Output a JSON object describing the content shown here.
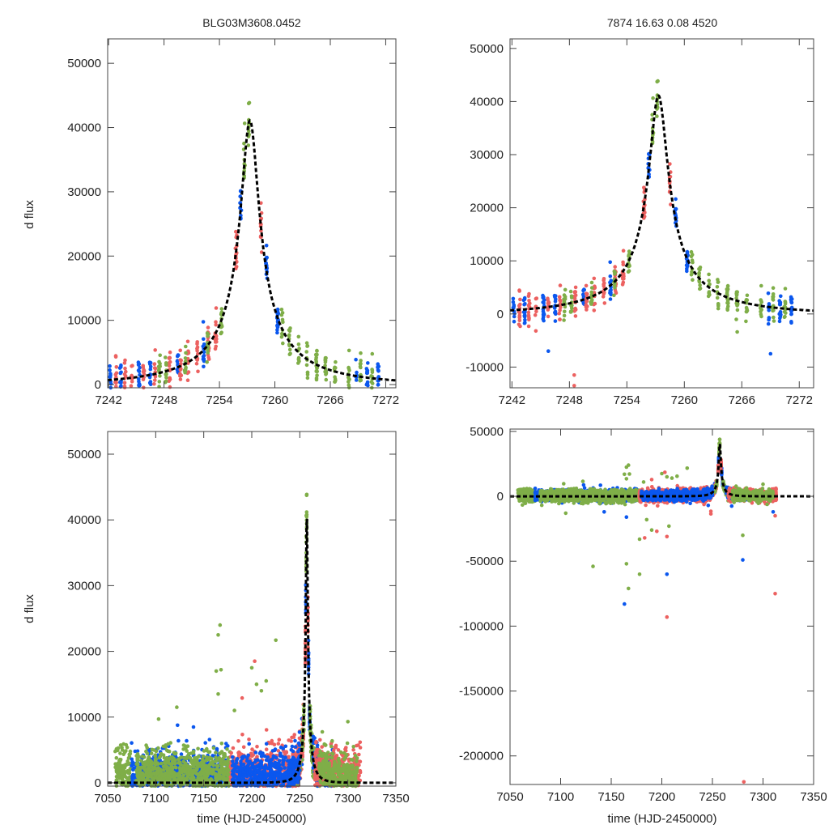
{
  "chart_data": {
    "type": "scatter",
    "colors": {
      "blue": "#0b57ee",
      "red": "#ec6160",
      "green": "#7fae48",
      "model": "#000000"
    },
    "titles": {
      "left": "BLG03M3608.0452",
      "right": "7874  16.63  0.08  4520"
    },
    "ylabel": "d flux",
    "xlabel": "time (HJD-2450000)",
    "model": {
      "type": "paczynski-dashed",
      "t0": 7257.3,
      "u0": 0.08,
      "tE": 12.0,
      "fs": 3565
    },
    "panels": [
      {
        "id": "zoom-left",
        "xlim": [
          7241.9,
          7273.1
        ],
        "ylim": [
          -500,
          53800
        ],
        "xticks": [
          7242,
          7248,
          7254,
          7260,
          7266,
          7272
        ],
        "yticks": [
          0,
          10000,
          20000,
          30000,
          40000,
          50000
        ],
        "title": "left",
        "show_ylabel": true,
        "show_xlabel": false,
        "dataset": "zoom"
      },
      {
        "id": "zoom-right",
        "xlim": [
          7241.8,
          7273.5
        ],
        "ylim": [
          -13900,
          51800
        ],
        "xticks": [
          7242,
          7248,
          7254,
          7260,
          7266,
          7272
        ],
        "yticks": [
          -10000,
          0,
          10000,
          20000,
          30000,
          40000,
          50000
        ],
        "title": "right",
        "show_ylabel": false,
        "show_xlabel": false,
        "dataset": "zoom"
      },
      {
        "id": "full-left",
        "xlim": [
          7050,
          7350
        ],
        "ylim": [
          -500,
          53450
        ],
        "xticks": [
          7050,
          7100,
          7150,
          7200,
          7250,
          7300,
          7350
        ],
        "yticks": [
          0,
          10000,
          20000,
          30000,
          40000,
          50000
        ],
        "show_ylabel": true,
        "show_xlabel": true,
        "dataset": "full"
      },
      {
        "id": "full-right",
        "xlim": [
          7050,
          7350
        ],
        "ylim": [
          -222000,
          51800
        ],
        "xticks": [
          7050,
          7100,
          7150,
          7200,
          7250,
          7300,
          7350
        ],
        "yticks": [
          -200000,
          -150000,
          -100000,
          -50000,
          0,
          50000
        ],
        "show_ylabel": false,
        "show_xlabel": true,
        "dataset": "full"
      }
    ],
    "series": [
      {
        "name": "blue",
        "event_nights": [
          7242.2,
          7243.3,
          7245.3,
          7246.5,
          7249.5,
          7252.3,
          7256.3,
          7259.1,
          7260.3,
          7268.8,
          7270.0,
          7271.2
        ]
      },
      {
        "name": "red",
        "event_nights": [
          7242.8,
          7243.8,
          7244.5,
          7245.8,
          7247.0,
          7248.6,
          7249.8,
          7250.6,
          7251.6,
          7252.8,
          7253.6,
          7255.8,
          7258.5
        ]
      },
      {
        "name": "green",
        "event_nights": [
          7247.5,
          7248.2,
          7250.3,
          7252.7,
          7254.2,
          7256.7,
          7257.2,
          7260.8,
          7261.6,
          7262.6,
          7263.5,
          7264.5,
          7265.5,
          7266.5,
          7268.0,
          7269.3,
          7270.5
        ]
      }
    ],
    "baseline_seasons": [
      {
        "color": "green",
        "range": [
          7058,
          7075
        ],
        "noise": 3000
      },
      {
        "color": "blue",
        "range": [
          7075,
          7175
        ],
        "noise": 2500
      },
      {
        "color": "green",
        "range": [
          7080,
          7178
        ],
        "noise": 2800
      },
      {
        "color": "red",
        "range": [
          7178,
          7250
        ],
        "noise": 2800
      },
      {
        "color": "blue",
        "range": [
          7180,
          7250
        ],
        "noise": 2200
      },
      {
        "color": "blue",
        "range": [
          7264,
          7285
        ],
        "noise": 2200
      },
      {
        "color": "red",
        "range": [
          7266,
          7313
        ],
        "noise": 2600
      },
      {
        "color": "green",
        "range": [
          7270,
          7310
        ],
        "noise": 2500
      }
    ],
    "outliers": [
      [
        "green",
        7132,
        -54000
      ],
      [
        "green",
        7165,
        -52000
      ],
      [
        "green",
        7178,
        -60000
      ],
      [
        "green",
        7167,
        -71000
      ],
      [
        "green",
        7178,
        -33000
      ],
      [
        "green",
        7190,
        -26000
      ],
      [
        "green",
        7207,
        -23000
      ],
      [
        "green",
        7105,
        -13000
      ],
      [
        "green",
        7280,
        -30000
      ],
      [
        "green",
        7185,
        -18000
      ],
      [
        "green",
        7167,
        24000
      ],
      [
        "green",
        7165,
        22500
      ],
      [
        "green",
        7225,
        21700
      ],
      [
        "green",
        7163,
        17000
      ],
      [
        "green",
        7168,
        17200
      ],
      [
        "green",
        7200,
        17500
      ],
      [
        "green",
        7205,
        15000
      ],
      [
        "green",
        7215,
        15500
      ],
      [
        "green",
        7103,
        9700
      ],
      [
        "green",
        7122,
        11500
      ],
      [
        "green",
        7165,
        13500
      ],
      [
        "green",
        7182,
        11000
      ],
      [
        "green",
        7300,
        9300
      ],
      [
        "green",
        7210,
        14000
      ],
      [
        "blue",
        7163,
        -83000
      ],
      [
        "blue",
        7205,
        -60000
      ],
      [
        "blue",
        7280,
        -49000
      ],
      [
        "blue",
        7143,
        -12000
      ],
      [
        "blue",
        7165,
        -16000
      ],
      [
        "blue",
        7310,
        -12000
      ],
      [
        "red",
        7205,
        -93000
      ],
      [
        "red",
        7312,
        -75000
      ],
      [
        "red",
        7281,
        -220000
      ],
      [
        "red",
        7183,
        -32000
      ],
      [
        "red",
        7205,
        -31000
      ],
      [
        "red",
        7195,
        -27000
      ],
      [
        "red",
        7312,
        -15000
      ],
      [
        "red",
        7203,
        18500
      ],
      [
        "red",
        7190,
        12900
      ],
      [
        "red",
        7248.5,
        -11500
      ],
      [
        "red",
        7248.5,
        -13500
      ],
      [
        "blue",
        7269,
        -7500
      ],
      [
        "blue",
        7245.8,
        -7000
      ]
    ]
  }
}
